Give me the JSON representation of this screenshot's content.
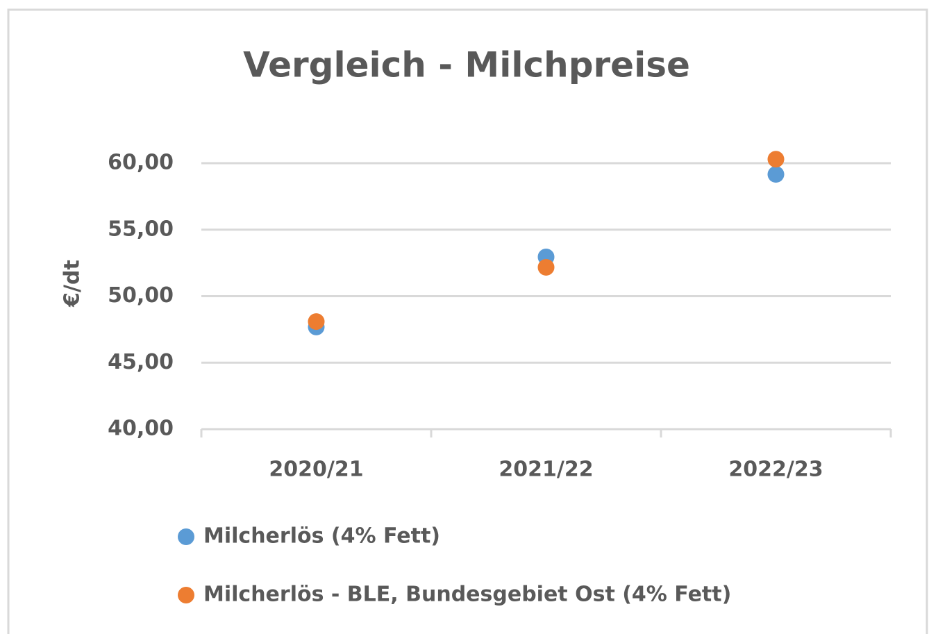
{
  "chart_data": {
    "type": "scatter",
    "title": "Vergleich - Milchpreise",
    "y_label": "€/dt",
    "categories": [
      "2020/21",
      "2021/22",
      "2022/23"
    ],
    "series": [
      {
        "name": "Milcherlös (4% Fett)",
        "color": "#5b9bd5",
        "values": [
          47.68,
          52.95,
          59.16
        ]
      },
      {
        "name": "Milcherlös - BLE, Bundesgebiet Ost (4% Fett)",
        "color": "#ed7d31",
        "values": [
          48.09,
          52.17,
          60.3
        ]
      }
    ],
    "ylim": [
      40,
      60
    ],
    "yticks": [
      {
        "value": 40,
        "label": "40,00"
      },
      {
        "value": 45,
        "label": "45,00"
      },
      {
        "value": 50,
        "label": "50,00"
      },
      {
        "value": 55,
        "label": "55,00"
      },
      {
        "value": 60,
        "label": "60,00"
      }
    ],
    "grid": true,
    "legend": "bottom"
  }
}
